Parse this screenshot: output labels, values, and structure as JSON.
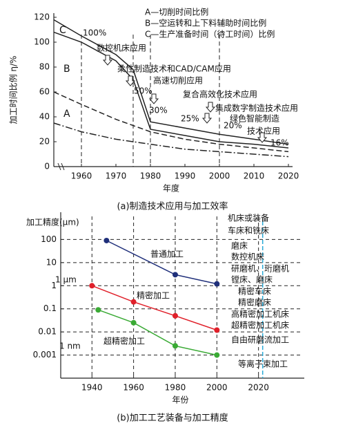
{
  "chart_data": [
    {
      "type": "line",
      "legend_lines": [
        "A—切削时间比例",
        "B—空运转和上下料辅助时间比例",
        "C—生产准备时间（待工时间）比例"
      ],
      "y_label": "加工时间比例 η/%",
      "x_label": "年度",
      "caption": "(a)制造技术应用与加工效率",
      "x": [
        1952,
        1960,
        1970,
        1975,
        1980,
        1990,
        2000,
        2010,
        2020
      ],
      "series": [
        {
          "color": "#222222",
          "dash": "solid",
          "values": [
            118,
            105,
            90,
            78,
            36,
            31,
            26,
            22,
            18
          ]
        },
        {
          "color": "#222222",
          "dash": "solid",
          "values": [
            108,
            100,
            85,
            70,
            30,
            25,
            20,
            18,
            15
          ]
        },
        {
          "color": "#222222",
          "dash": "dashed",
          "values": [
            60,
            50,
            38,
            33,
            28,
            22,
            18,
            15,
            12
          ]
        },
        {
          "color": "#222222",
          "dash": "dashdot",
          "values": [
            35,
            28,
            22,
            20,
            18,
            14,
            12,
            10,
            8
          ]
        }
      ],
      "vlines": [
        1960,
        1975,
        1980,
        2000
      ],
      "region_labels": [
        "C",
        "B",
        "A"
      ],
      "annotations": [
        "100%",
        "数控机床应用",
        "柔性制造技术和CAD/CAM应用",
        "50%",
        "高速切削应用",
        "30%",
        "复合高效化技术应用",
        "集成数字制造技术应用",
        "25%",
        "20%",
        "绿色智能制造",
        "技术应用",
        "16%"
      ],
      "xlim": [
        1952,
        2020
      ],
      "xticks": [
        1960,
        1970,
        1980,
        1990,
        2000,
        2010,
        2020
      ],
      "ylim": [
        0,
        120
      ],
      "yticks": [
        0,
        20,
        40,
        60,
        80,
        100,
        120
      ]
    },
    {
      "type": "line",
      "log_y": true,
      "grid": true,
      "y_label": "加工精度(μm)",
      "x_label": "年份",
      "caption": "(b)加工工艺装备与加工精度",
      "series": [
        {
          "name": "普通加工",
          "color": "#1f2f7a",
          "x": [
            1947,
            1980,
            2000
          ],
          "values": [
            90,
            3,
            1.2
          ]
        },
        {
          "name": "精密加工",
          "color": "#e0202a",
          "x": [
            1940,
            1960,
            1980,
            2000
          ],
          "values": [
            1,
            0.2,
            0.05,
            0.012
          ]
        },
        {
          "name": "超精密加工",
          "color": "#3aaa35",
          "x": [
            1943,
            1960,
            1980,
            2000
          ],
          "values": [
            0.09,
            0.025,
            0.0025,
            0.001
          ]
        }
      ],
      "ref_line": 2022,
      "ref_color": "#29a9d6",
      "unit_labels": [
        "1 μm",
        "1 nm"
      ],
      "equipment_labels": [
        "机床或装备",
        "车床和铣床",
        "磨床",
        "数控机床",
        "研磨机、珩磨机",
        "镗床、磨床",
        "精密车床",
        "精密磨床",
        "高精密加工机床",
        "超精密加工机床",
        "自由研磨流加工",
        "等离子束加工"
      ],
      "xlim": [
        1925,
        2040
      ],
      "xticks": [
        1940,
        1960,
        1980,
        2000,
        2020
      ],
      "ylim": [
        0.0001,
        1000
      ],
      "yticks": [
        100,
        10,
        1,
        0.1,
        0.01,
        0.001
      ]
    }
  ]
}
